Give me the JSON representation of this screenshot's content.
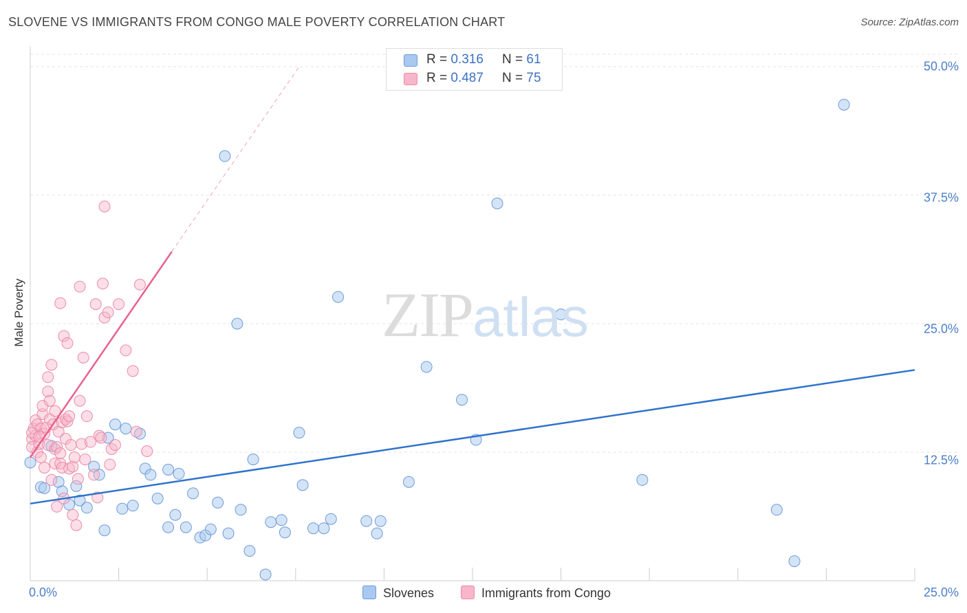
{
  "title": "SLOVENE VS IMMIGRANTS FROM CONGO MALE POVERTY CORRELATION CHART",
  "source": "Source: ZipAtlas.com",
  "watermark": {
    "zip": "ZIP",
    "atlas": "atlas"
  },
  "legend": {
    "rows": [
      {
        "r_label": "R = ",
        "r_value": "0.316",
        "n_label": "N = ",
        "n_value": "61"
      },
      {
        "r_label": "R = ",
        "r_value": "0.487",
        "n_label": "N = ",
        "n_value": "75"
      }
    ]
  },
  "bottom_legend": [
    "Slovenes",
    "Immigrants from Congo"
  ],
  "colors": {
    "slovenes_fill": "#a9c9f0",
    "slovenes_stroke": "#6c9ad8",
    "slovenes_line": "#2e72cc",
    "congo_fill": "#f7b6c9",
    "congo_stroke": "#ec8aa8",
    "congo_line": "#e8608c",
    "grid": "#e3e3e3",
    "tick_text": "#4a7fc8"
  },
  "chart_data": {
    "type": "scatter",
    "title": "SLOVENE VS IMMIGRANTS FROM CONGO MALE POVERTY CORRELATION CHART",
    "xlabel": "",
    "ylabel": "Male Poverty",
    "xlim": [
      0,
      25
    ],
    "ylim": [
      0,
      50
    ],
    "x_tick_labels": [
      "0.0%",
      "25.0%"
    ],
    "y_ticks": [
      12.5,
      25.0,
      37.5,
      50.0
    ],
    "y_tick_labels": [
      "12.5%",
      "25.0%",
      "37.5%",
      "50.0%"
    ],
    "grid": true,
    "legend_position": "top-center",
    "series": [
      {
        "name": "Slovenes",
        "r": 0.316,
        "n": 61,
        "trend": [
          [
            0,
            7.5
          ],
          [
            25,
            20.5
          ]
        ],
        "points": [
          [
            0.0,
            11.5
          ],
          [
            0.3,
            9.1
          ],
          [
            0.4,
            9.0
          ],
          [
            0.6,
            13.1
          ],
          [
            0.8,
            9.6
          ],
          [
            0.9,
            8.7
          ],
          [
            1.1,
            7.4
          ],
          [
            1.3,
            9.2
          ],
          [
            1.4,
            7.8
          ],
          [
            1.6,
            7.1
          ],
          [
            1.8,
            11.1
          ],
          [
            1.95,
            10.3
          ],
          [
            2.1,
            4.9
          ],
          [
            2.2,
            13.9
          ],
          [
            2.4,
            15.2
          ],
          [
            2.6,
            7.0
          ],
          [
            2.7,
            14.8
          ],
          [
            2.9,
            7.3
          ],
          [
            3.1,
            14.3
          ],
          [
            3.25,
            10.9
          ],
          [
            3.4,
            10.3
          ],
          [
            3.6,
            8.0
          ],
          [
            3.9,
            5.2
          ],
          [
            3.9,
            10.8
          ],
          [
            4.1,
            6.4
          ],
          [
            4.2,
            10.4
          ],
          [
            4.4,
            5.2
          ],
          [
            4.6,
            8.5
          ],
          [
            4.8,
            4.2
          ],
          [
            4.95,
            4.4
          ],
          [
            5.1,
            5.0
          ],
          [
            5.3,
            7.6
          ],
          [
            5.5,
            41.3
          ],
          [
            5.6,
            4.6
          ],
          [
            5.85,
            25.0
          ],
          [
            5.95,
            6.9
          ],
          [
            6.2,
            2.9
          ],
          [
            6.3,
            11.8
          ],
          [
            6.65,
            0.6
          ],
          [
            6.8,
            5.7
          ],
          [
            7.1,
            5.9
          ],
          [
            7.2,
            4.7
          ],
          [
            7.6,
            14.4
          ],
          [
            7.7,
            9.3
          ],
          [
            8.0,
            5.1
          ],
          [
            8.3,
            5.1
          ],
          [
            8.5,
            6.0
          ],
          [
            8.7,
            27.6
          ],
          [
            9.5,
            5.8
          ],
          [
            9.8,
            4.6
          ],
          [
            9.9,
            5.8
          ],
          [
            10.7,
            9.6
          ],
          [
            11.2,
            20.8
          ],
          [
            12.2,
            17.6
          ],
          [
            12.6,
            13.7
          ],
          [
            13.2,
            36.7
          ],
          [
            15.0,
            25.9
          ],
          [
            17.3,
            9.8
          ],
          [
            21.1,
            6.9
          ],
          [
            21.6,
            1.9
          ],
          [
            23.0,
            46.3
          ]
        ]
      },
      {
        "name": "Immigrants from Congo",
        "r": 0.487,
        "n": 75,
        "trend_solid": [
          [
            0,
            12.0
          ],
          [
            4.0,
            32.0
          ]
        ],
        "trend_dashed": [
          [
            4.0,
            32.0
          ],
          [
            7.6,
            50.0
          ]
        ],
        "points": [
          [
            0.05,
            13.8
          ],
          [
            0.05,
            13.0
          ],
          [
            0.1,
            14.8
          ],
          [
            0.15,
            15.6
          ],
          [
            0.15,
            14.1
          ],
          [
            0.2,
            12.5
          ],
          [
            0.2,
            15.2
          ],
          [
            0.25,
            13.3
          ],
          [
            0.3,
            12.0
          ],
          [
            0.3,
            14.8
          ],
          [
            0.35,
            16.2
          ],
          [
            0.35,
            17.0
          ],
          [
            0.4,
            11.0
          ],
          [
            0.4,
            14.3
          ],
          [
            0.45,
            14.9
          ],
          [
            0.5,
            18.4
          ],
          [
            0.5,
            19.8
          ],
          [
            0.5,
            13.2
          ],
          [
            0.55,
            15.7
          ],
          [
            0.55,
            17.5
          ],
          [
            0.6,
            9.8
          ],
          [
            0.6,
            21.0
          ],
          [
            0.65,
            15.2
          ],
          [
            0.7,
            16.5
          ],
          [
            0.7,
            12.8
          ],
          [
            0.7,
            11.4
          ],
          [
            0.75,
            13.0
          ],
          [
            0.75,
            7.2
          ],
          [
            0.8,
            14.5
          ],
          [
            0.85,
            11.4
          ],
          [
            0.85,
            12.4
          ],
          [
            0.85,
            27.0
          ],
          [
            0.9,
            15.4
          ],
          [
            0.9,
            11.0
          ],
          [
            0.95,
            8.0
          ],
          [
            0.95,
            23.8
          ],
          [
            1.0,
            15.7
          ],
          [
            1.0,
            13.8
          ],
          [
            1.05,
            23.1
          ],
          [
            1.05,
            15.5
          ],
          [
            1.1,
            10.9
          ],
          [
            1.1,
            16.0
          ],
          [
            1.15,
            13.2
          ],
          [
            1.2,
            11.1
          ],
          [
            1.2,
            6.4
          ],
          [
            1.25,
            12.0
          ],
          [
            1.3,
            5.4
          ],
          [
            1.35,
            9.9
          ],
          [
            1.4,
            17.5
          ],
          [
            1.4,
            28.6
          ],
          [
            1.45,
            13.3
          ],
          [
            1.5,
            21.7
          ],
          [
            1.55,
            11.8
          ],
          [
            1.6,
            16.0
          ],
          [
            1.7,
            13.5
          ],
          [
            1.8,
            10.3
          ],
          [
            1.85,
            26.9
          ],
          [
            1.9,
            8.1
          ],
          [
            1.95,
            14.1
          ],
          [
            2.0,
            13.9
          ],
          [
            2.05,
            28.9
          ],
          [
            2.1,
            36.4
          ],
          [
            2.1,
            25.6
          ],
          [
            2.2,
            26.1
          ],
          [
            2.25,
            11.3
          ],
          [
            2.3,
            12.8
          ],
          [
            2.4,
            13.2
          ],
          [
            2.5,
            26.9
          ],
          [
            2.7,
            22.4
          ],
          [
            2.9,
            20.4
          ],
          [
            3.0,
            14.5
          ],
          [
            3.1,
            28.8
          ],
          [
            3.3,
            12.6
          ],
          [
            0.05,
            14.4
          ],
          [
            0.25,
            14.0
          ]
        ]
      }
    ]
  }
}
